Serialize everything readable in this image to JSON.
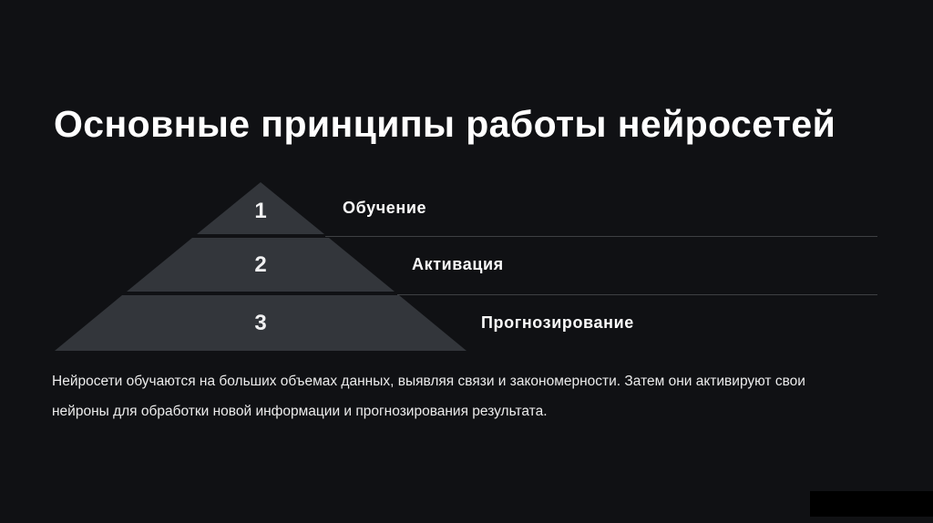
{
  "slide": {
    "title": "Основные принципы работы нейросетей",
    "pyramid": {
      "type": "pyramid-diagram",
      "levels": [
        {
          "number": "1",
          "label": "Обучение"
        },
        {
          "number": "2",
          "label": "Активация"
        },
        {
          "number": "3",
          "label": "Прогнозирование"
        }
      ]
    },
    "description": {
      "line1": "Нейросети обучаются на больших объемах данных, выявляя связи и закономерности. Затем они активируют свои",
      "line2": "нейроны для обработки новой информации и прогнозирования результата."
    },
    "colors": {
      "background": "#101114",
      "pyramid_fill": "#33363b",
      "separator_line": "#3e4043",
      "title_text": "#ffffff",
      "label_text": "#fafafa",
      "body_text": "#ececec",
      "number_text": "#f1f1f2",
      "watermark_box": "#000000"
    }
  }
}
